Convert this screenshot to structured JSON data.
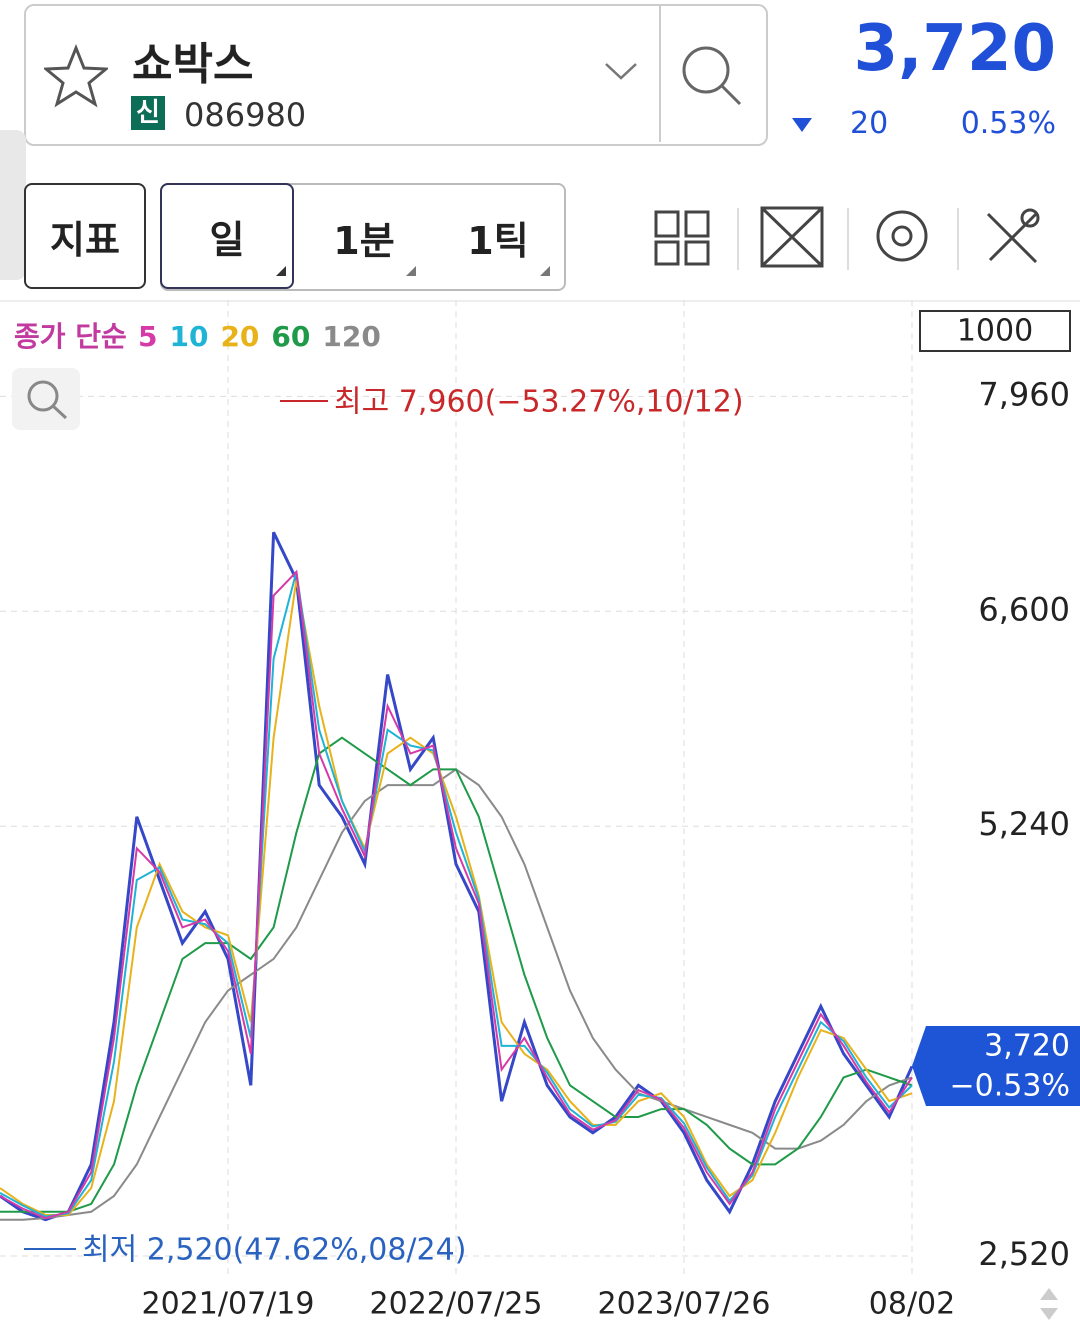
{
  "header": {
    "stock_name": "쇼박스",
    "market_badge": "신",
    "code": "086980",
    "price": "3,720",
    "change": "20",
    "change_pct": "0.53%"
  },
  "toolbar": {
    "indicator": "지표",
    "periods": [
      "일",
      "1분",
      "1틱"
    ]
  },
  "chart_data": {
    "type": "line",
    "legend_title": "종가 단순",
    "scale_box": "1000",
    "annotations": [
      "최고 7,960(−53.27%,10/12)",
      "최저 2,520(47.62%,08/24)"
    ],
    "last_price_label": [
      "3,720",
      "−0.53%"
    ],
    "categories": [
      null,
      null,
      null,
      null,
      null,
      null,
      null,
      null,
      null,
      null,
      "2021/07/19",
      null,
      null,
      null,
      null,
      null,
      null,
      null,
      null,
      null,
      "2022/07/25",
      null,
      null,
      null,
      null,
      null,
      null,
      null,
      null,
      null,
      "2023/07/26",
      null,
      null,
      null,
      null,
      null,
      null,
      null,
      null,
      null,
      "08/02"
    ],
    "values": [
      2900,
      2800,
      2750,
      2800,
      3100,
      4000,
      5300,
      4900,
      4500,
      4700,
      4400,
      3600,
      7100,
      6800,
      5500,
      5300,
      5000,
      6200,
      5600,
      5800,
      5000,
      4700,
      3500,
      4000,
      3600,
      3400,
      3300,
      3400,
      3600,
      3500,
      3300,
      3000,
      2800,
      3100,
      3500,
      3800,
      4100,
      3800,
      3600,
      3400,
      3720
    ],
    "color": "#3548c8",
    "series": [
      {
        "name": "5",
        "color": "#d63aa8",
        "values": [
          2900,
          2820,
          2760,
          2800,
          3050,
          3900,
          5100,
          4950,
          4600,
          4650,
          4450,
          3800,
          6700,
          6850,
          5700,
          5350,
          5050,
          6000,
          5700,
          5750,
          5100,
          4750,
          3700,
          3900,
          3650,
          3420,
          3320,
          3380,
          3570,
          3510,
          3330,
          3050,
          2850,
          3050,
          3450,
          3750,
          4050,
          3850,
          3620,
          3430,
          3650
        ]
      },
      {
        "name": "10",
        "color": "#1fb3d6",
        "values": [
          2920,
          2840,
          2770,
          2790,
          3000,
          3750,
          4900,
          4980,
          4650,
          4620,
          4500,
          3900,
          6300,
          6850,
          5850,
          5400,
          5080,
          5850,
          5750,
          5720,
          5200,
          4780,
          3850,
          3850,
          3680,
          3450,
          3340,
          3370,
          3540,
          3520,
          3360,
          3080,
          2870,
          3030,
          3400,
          3700,
          4000,
          3880,
          3650,
          3460,
          3600
        ]
      },
      {
        "name": "20",
        "color": "#e8b21a",
        "values": [
          2950,
          2850,
          2780,
          2780,
          2950,
          3500,
          4600,
          5000,
          4700,
          4600,
          4550,
          4000,
          5800,
          6800,
          6000,
          5400,
          5100,
          5700,
          5800,
          5700,
          5300,
          4800,
          4000,
          3800,
          3700,
          3500,
          3350,
          3350,
          3500,
          3550,
          3400,
          3100,
          2900,
          3000,
          3300,
          3650,
          3950,
          3900,
          3700,
          3500,
          3550
        ]
      },
      {
        "name": "60",
        "color": "#1e9a48",
        "values": [
          2800,
          2800,
          2800,
          2800,
          2850,
          3100,
          3600,
          4000,
          4400,
          4500,
          4500,
          4400,
          4600,
          5200,
          5700,
          5800,
          5700,
          5600,
          5500,
          5600,
          5600,
          5300,
          4800,
          4300,
          3900,
          3600,
          3500,
          3400,
          3400,
          3450,
          3450,
          3350,
          3200,
          3100,
          3100,
          3200,
          3400,
          3650,
          3700,
          3650,
          3600
        ]
      },
      {
        "name": "120",
        "color": "#8a8a8a",
        "values": [
          2750,
          2750,
          2760,
          2780,
          2800,
          2900,
          3100,
          3400,
          3700,
          4000,
          4200,
          4300,
          4400,
          4600,
          4900,
          5200,
          5400,
          5500,
          5500,
          5500,
          5600,
          5500,
          5300,
          5000,
          4600,
          4200,
          3900,
          3700,
          3550,
          3500,
          3450,
          3400,
          3350,
          3300,
          3200,
          3200,
          3250,
          3350,
          3500,
          3600,
          3650
        ]
      }
    ],
    "ylim": [
      2400,
      8570
    ],
    "yticks": [
      {
        "value": 2520,
        "label": "2,520"
      },
      {
        "value": 5240,
        "label": "5,240"
      },
      {
        "value": 6600,
        "label": "6,600"
      },
      {
        "value": 7960,
        "label": "7,960"
      }
    ],
    "grid": true
  }
}
